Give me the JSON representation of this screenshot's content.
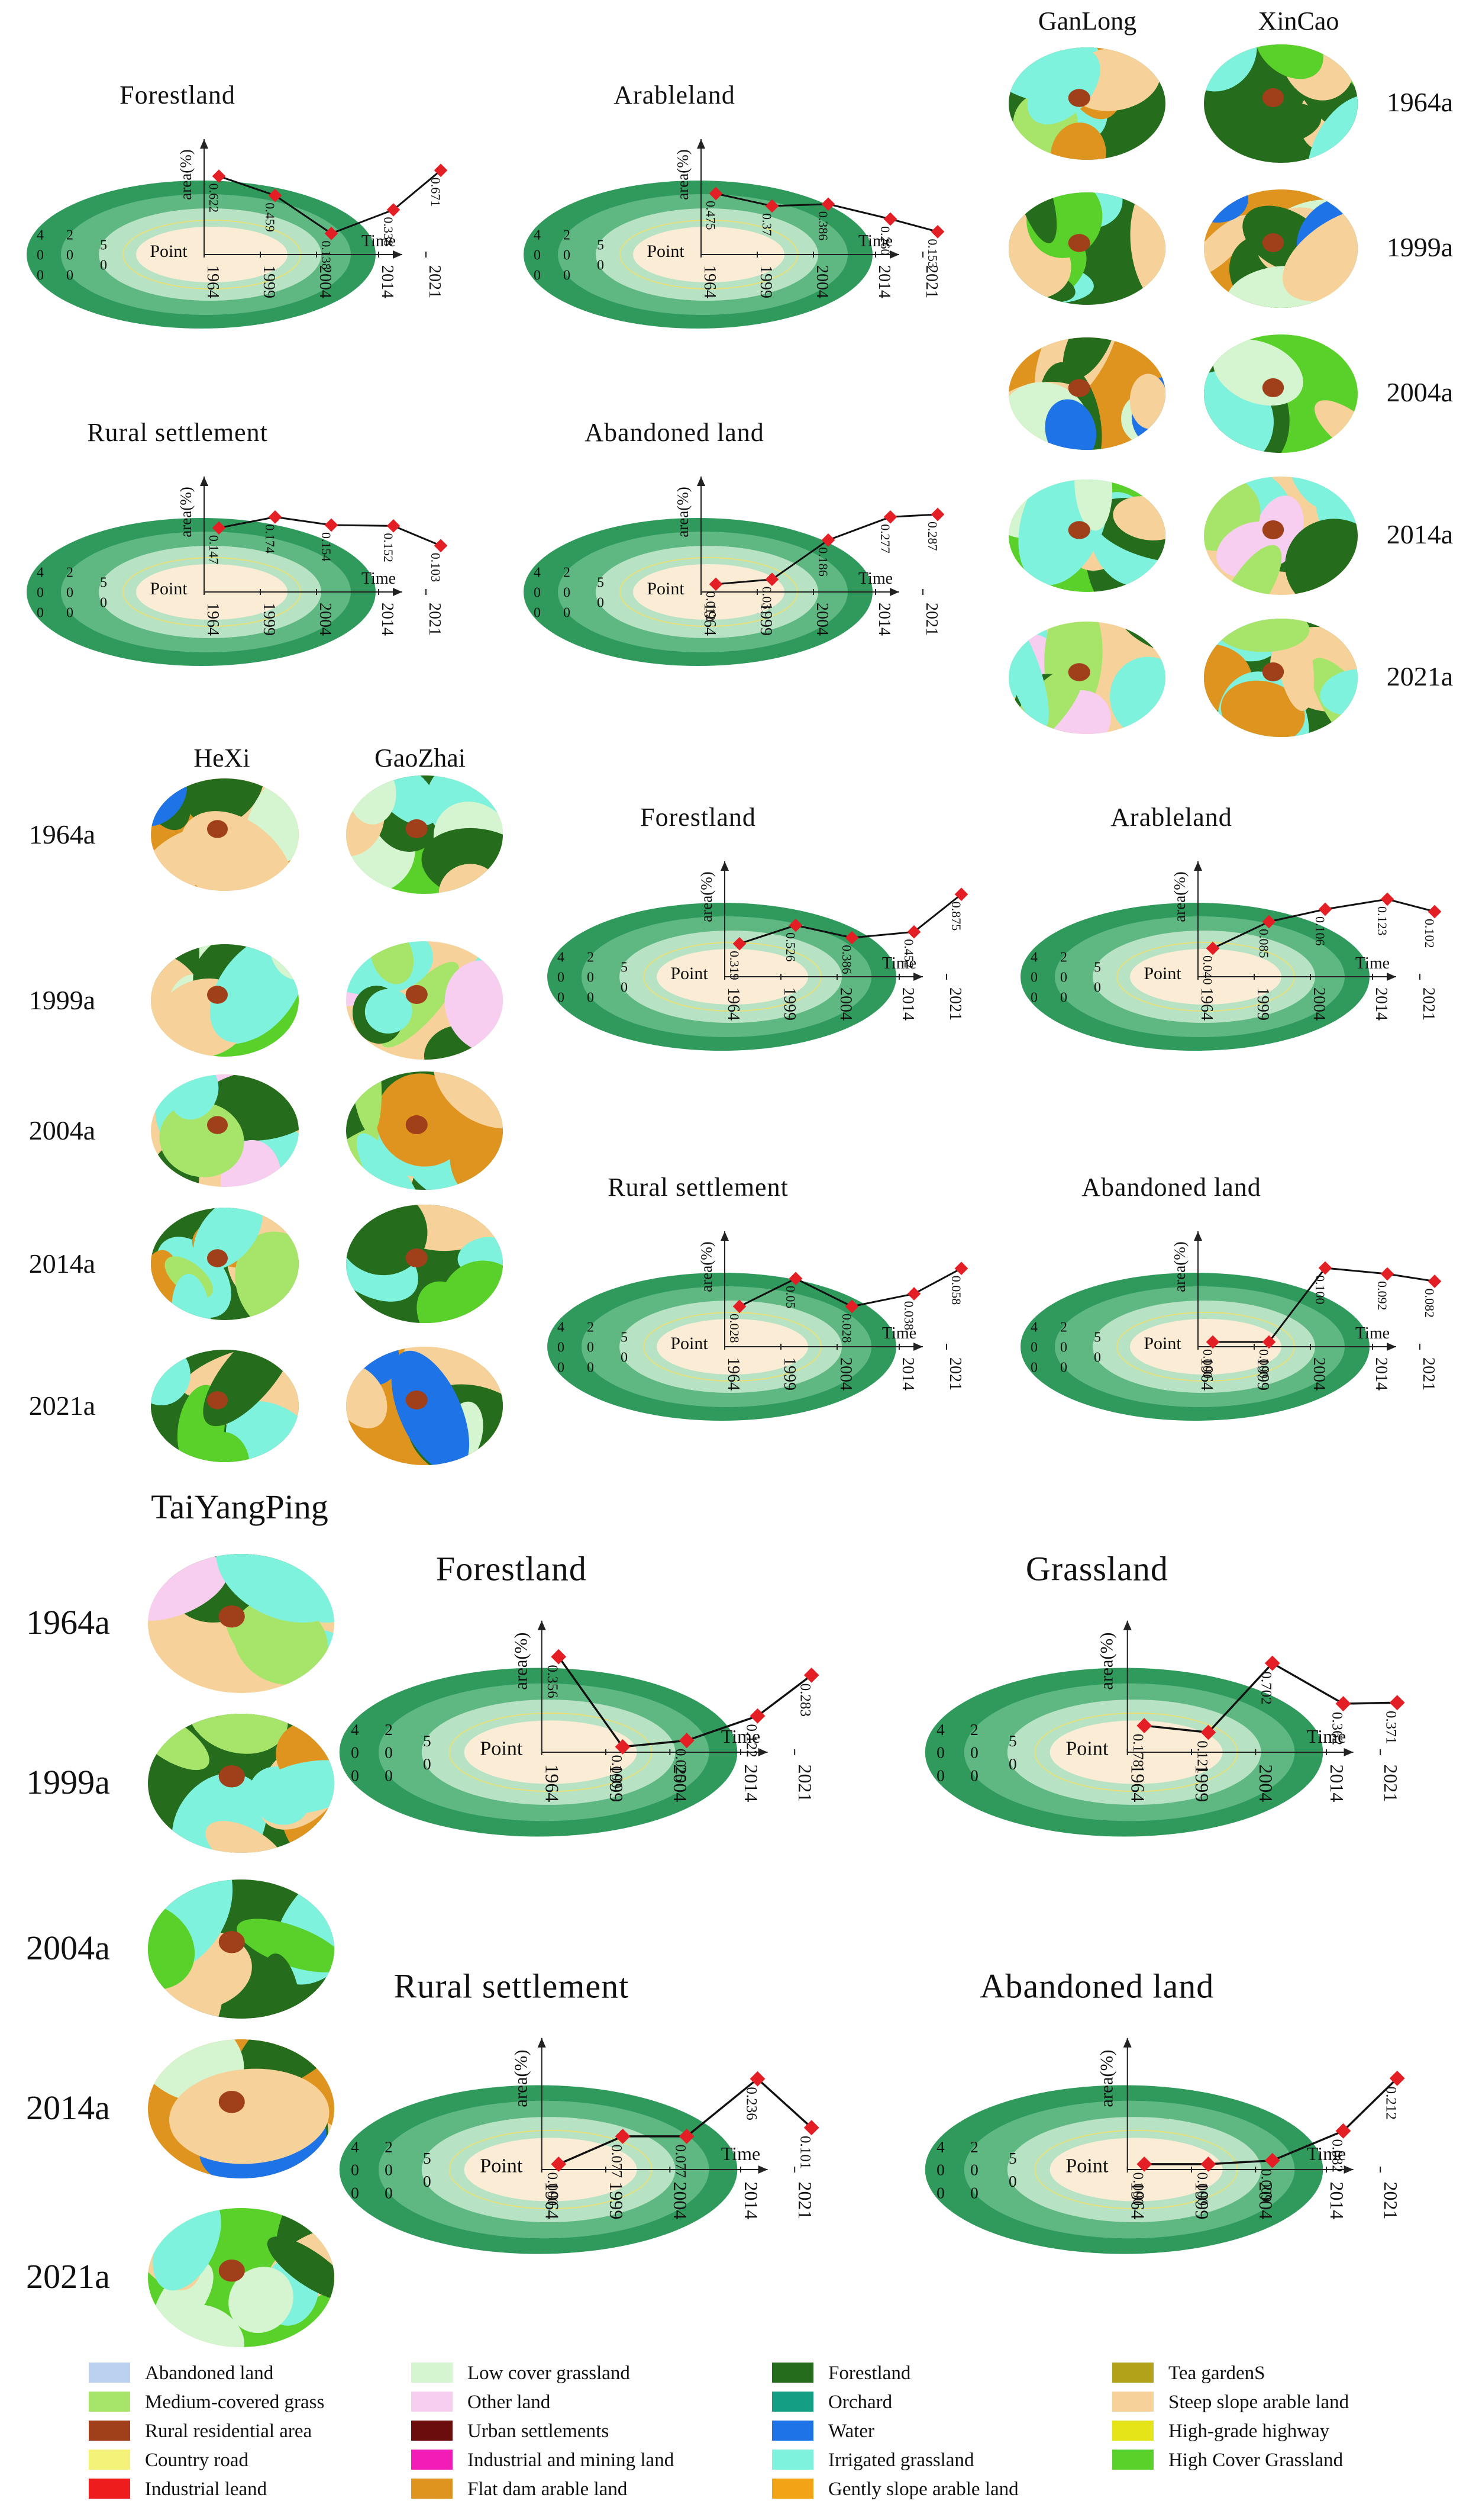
{
  "colors": {
    "ring_outer": "#2f9a5c",
    "ring_mid": "#5fb882",
    "ring_inner": "#b8e2c4",
    "point_fill": "#fbecd6",
    "marker": "#e31e24",
    "line": "#111111"
  },
  "shared": {
    "point_label": "Point",
    "axis_y_label": "area(%)",
    "axis_x_label": "Time",
    "ring_labels": [
      "400",
      "200",
      "50"
    ],
    "years": [
      "1964",
      "1999",
      "2004",
      "2014",
      "2021"
    ]
  },
  "chart_data": [
    {
      "type": "line",
      "group": "GanLong/XinCao",
      "title": "Forestland",
      "x": [
        "1964",
        "1999",
        "2004",
        "2014",
        "2021"
      ],
      "labels": [
        "0.622",
        "0.459",
        "0.138",
        "0.338",
        "0.671"
      ],
      "values": [
        0.622,
        0.459,
        0.138,
        0.338,
        0.671
      ],
      "ylim": [
        0,
        0.75
      ]
    },
    {
      "type": "line",
      "group": "GanLong/XinCao",
      "title": "Arableland",
      "x": [
        "1964",
        "1999",
        "2004",
        "2014",
        "2021"
      ],
      "labels": [
        "0.475",
        "0.37",
        "0.386",
        "0.260",
        "0.153"
      ],
      "values": [
        0.475,
        0.37,
        0.386,
        0.26,
        0.153
      ],
      "ylim": [
        0,
        0.75
      ]
    },
    {
      "type": "line",
      "group": "GanLong/XinCao",
      "title": "Rural settlement",
      "x": [
        "1964",
        "1999",
        "2004",
        "2014",
        "2021"
      ],
      "labels": [
        "0.147",
        "0.174",
        "0.154",
        "0.152",
        "0.103"
      ],
      "values": [
        0.147,
        0.174,
        0.154,
        0.152,
        0.103
      ],
      "ylim": [
        0,
        0.22
      ]
    },
    {
      "type": "line",
      "group": "GanLong/XinCao",
      "title": "Abandoned land",
      "x": [
        "1964",
        "1999",
        "2004",
        "2014",
        "2021"
      ],
      "labels": [
        "0.012",
        "0.031",
        "0.186",
        "0.277",
        "0.287"
      ],
      "values": [
        0.012,
        0.031,
        0.186,
        0.277,
        0.287
      ],
      "ylim": [
        0,
        0.35
      ]
    },
    {
      "type": "line",
      "group": "HeXi/GaoZhai",
      "title": "Forestland",
      "x": [
        "1964",
        "1999",
        "2004",
        "2014",
        "2021"
      ],
      "labels": [
        "0.319",
        "0.526",
        "0.386",
        "0.452",
        "0.875"
      ],
      "values": [
        0.319,
        0.526,
        0.386,
        0.452,
        0.875
      ],
      "ylim": [
        0,
        1.0
      ]
    },
    {
      "type": "line",
      "group": "HeXi/GaoZhai",
      "title": "Arableland",
      "x": [
        "1964",
        "1999",
        "2004",
        "2014",
        "2021"
      ],
      "labels": [
        "0.040",
        "0.085",
        "0.106",
        "0.123",
        "0.102"
      ],
      "values": [
        0.04,
        0.085,
        0.106,
        0.123,
        0.102
      ],
      "ylim": [
        0,
        0.15
      ]
    },
    {
      "type": "line",
      "group": "HeXi/GaoZhai",
      "title": "Rural settlement",
      "x": [
        "1964",
        "1999",
        "2004",
        "2014",
        "2021"
      ],
      "labels": [
        "0.028",
        "0.05",
        "0.028",
        "0.038",
        "0.058"
      ],
      "values": [
        0.028,
        0.05,
        0.028,
        0.038,
        0.058
      ],
      "ylim": [
        0,
        0.07
      ]
    },
    {
      "type": "line",
      "group": "HeXi/GaoZhai",
      "title": "Abandoned land",
      "x": [
        "1964",
        "1999",
        "2004",
        "2014",
        "2021"
      ],
      "labels": [
        "0.000",
        "0.000",
        "0.100",
        "0.092",
        "0.082"
      ],
      "values": [
        0.0,
        0.0,
        0.1,
        0.092,
        0.082
      ],
      "ylim": [
        0,
        0.12
      ]
    },
    {
      "type": "line",
      "group": "TaiYangPing",
      "title": "Forestland",
      "x": [
        "1964",
        "1999",
        "2004",
        "2014",
        "2021"
      ],
      "labels": [
        "0.356",
        "0.000",
        "0.025",
        "0.122",
        "0.283"
      ],
      "values": [
        0.356,
        0.0,
        0.025,
        0.122,
        0.283
      ],
      "ylim": [
        0,
        0.4
      ]
    },
    {
      "type": "line",
      "group": "TaiYangPing",
      "title": "Grassland",
      "x": [
        "1964",
        "1999",
        "2004",
        "2014",
        "2021"
      ],
      "labels": [
        "0.178",
        "0.121",
        "0.702",
        "0.362",
        "0.371"
      ],
      "values": [
        0.178,
        0.121,
        0.702,
        0.362,
        0.371
      ],
      "ylim": [
        0,
        0.85
      ]
    },
    {
      "type": "line",
      "group": "TaiYangPing",
      "title": "Rural settlement",
      "x": [
        "1964",
        "1999",
        "2004",
        "2014",
        "2021"
      ],
      "labels": [
        "0.000",
        "0.077",
        "0.077",
        "0.236",
        "0.101"
      ],
      "values": [
        0.0,
        0.077,
        0.077,
        0.236,
        0.101
      ],
      "ylim": [
        0,
        0.28
      ]
    },
    {
      "type": "line",
      "group": "TaiYangPing",
      "title": "Abandoned land",
      "x": [
        "1964",
        "1999",
        "2004",
        "2014",
        "2021"
      ],
      "labels": [
        "0.000",
        "0.000",
        "0.009",
        "0.082",
        "0.212"
      ],
      "values": [
        0.0,
        0.0,
        0.009,
        0.082,
        0.212
      ],
      "ylim": [
        0,
        0.25
      ]
    }
  ],
  "map_panels": [
    {
      "village_a": "GanLong",
      "village_b": "XinCao",
      "years": [
        "1964a",
        "1999a",
        "2004a",
        "2014a",
        "2021a"
      ]
    },
    {
      "village_a": "HeXi",
      "village_b": "GaoZhai",
      "years": [
        "1964a",
        "1999a",
        "2004a",
        "2014a",
        "2021a"
      ]
    },
    {
      "village_a": "TaiYangPing",
      "years": [
        "1964a",
        "1999a",
        "2004a",
        "2014a",
        "2021a"
      ]
    }
  ],
  "legend": [
    {
      "label": "Abandoned land",
      "color": "#bcd0f0"
    },
    {
      "label": "Medium-covered grass",
      "color": "#a7e56a"
    },
    {
      "label": "Rural residential area",
      "color": "#a0401a"
    },
    {
      "label": "Country road",
      "color": "#f5f27a"
    },
    {
      "label": "Industrial leand",
      "color": "#ee1c1c"
    },
    {
      "label": "Low cover grassland",
      "color": "#d4f5cf"
    },
    {
      "label": "Other land",
      "color": "#f7cdf0"
    },
    {
      "label": "Urban settlements",
      "color": "#6b0d0d"
    },
    {
      "label": "Industrial and mining land",
      "color": "#f21cb7"
    },
    {
      "label": "Flat dam arable land",
      "color": "#df9420"
    },
    {
      "label": "Forestland",
      "color": "#256d1c"
    },
    {
      "label": "Orchard",
      "color": "#149f85"
    },
    {
      "label": "Water",
      "color": "#1e74e6"
    },
    {
      "label": "Irrigated grassland",
      "color": "#7ff2de"
    },
    {
      "label": "Gently slope arable land",
      "color": "#f2a416"
    },
    {
      "label": "Tea gardenS",
      "color": "#b2a21a"
    },
    {
      "label": "Steep slope arable land",
      "color": "#f7d19a"
    },
    {
      "label": "High-grade highway",
      "color": "#e4e418"
    },
    {
      "label": "High Cover Grassland",
      "color": "#5ad12a"
    }
  ]
}
